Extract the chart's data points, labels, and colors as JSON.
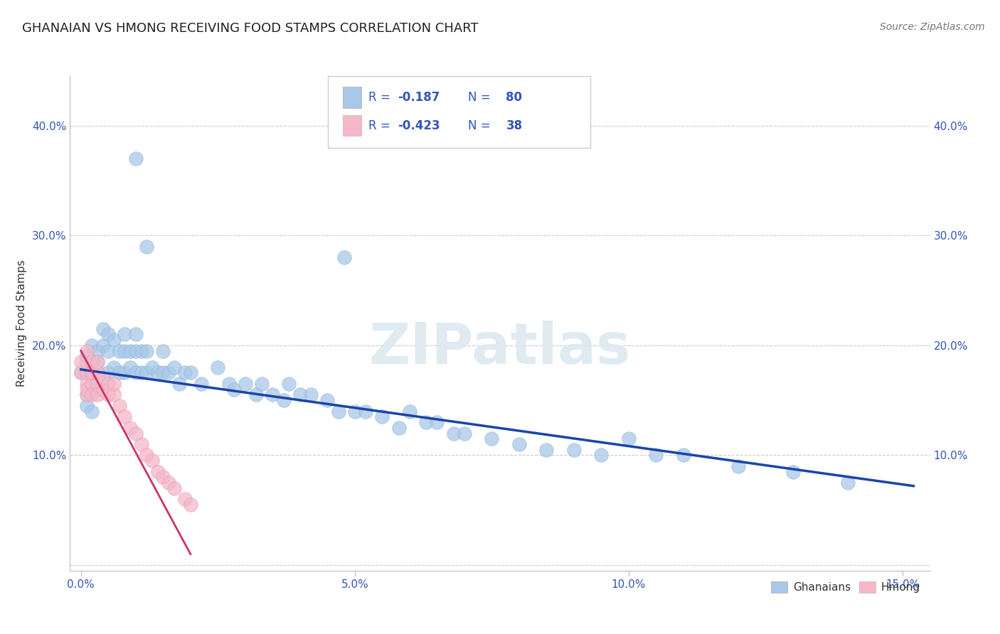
{
  "title": "GHANAIAN VS HMONG RECEIVING FOOD STAMPS CORRELATION CHART",
  "source": "Source: ZipAtlas.com",
  "ylabel": "Receiving Food Stamps",
  "xlim": [
    -0.002,
    0.155
  ],
  "ylim": [
    -0.005,
    0.445
  ],
  "xticks": [
    0.0,
    0.05,
    0.1,
    0.15
  ],
  "xtick_labels": [
    "0.0%",
    "5.0%",
    "10.0%",
    "15.0%"
  ],
  "yticks": [
    0.1,
    0.2,
    0.3,
    0.4
  ],
  "ytick_labels": [
    "10.0%",
    "20.0%",
    "30.0%",
    "40.0%"
  ],
  "blue_color": "#a8c8e8",
  "pink_color": "#f4b8c8",
  "blue_line_color": "#1a44aa",
  "pink_line_color": "#cc3366",
  "legend_text_color": "#3355bb",
  "blue_r": "-0.187",
  "blue_n": "80",
  "pink_r": "-0.423",
  "pink_n": "38",
  "legend_label_blue": "Ghanaians",
  "legend_label_pink": "Hmong",
  "watermark": "ZIPatlas",
  "blue_x": [
    0.0,
    0.001,
    0.001,
    0.001,
    0.001,
    0.002,
    0.002,
    0.002,
    0.002,
    0.003,
    0.003,
    0.003,
    0.003,
    0.004,
    0.004,
    0.005,
    0.005,
    0.005,
    0.006,
    0.006,
    0.007,
    0.007,
    0.008,
    0.008,
    0.008,
    0.009,
    0.009,
    0.01,
    0.01,
    0.01,
    0.011,
    0.011,
    0.012,
    0.012,
    0.013,
    0.014,
    0.015,
    0.015,
    0.016,
    0.017,
    0.018,
    0.019,
    0.02,
    0.022,
    0.025,
    0.027,
    0.028,
    0.03,
    0.032,
    0.033,
    0.035,
    0.037,
    0.038,
    0.04,
    0.042,
    0.045,
    0.047,
    0.05,
    0.052,
    0.055,
    0.058,
    0.06,
    0.063,
    0.065,
    0.068,
    0.07,
    0.075,
    0.08,
    0.085,
    0.09,
    0.095,
    0.1,
    0.105,
    0.11,
    0.12,
    0.13,
    0.14,
    0.01,
    0.012,
    0.048
  ],
  "blue_y": [
    0.175,
    0.155,
    0.145,
    0.175,
    0.19,
    0.16,
    0.14,
    0.165,
    0.2,
    0.185,
    0.16,
    0.195,
    0.175,
    0.2,
    0.215,
    0.175,
    0.195,
    0.21,
    0.18,
    0.205,
    0.175,
    0.195,
    0.175,
    0.195,
    0.21,
    0.18,
    0.195,
    0.175,
    0.195,
    0.21,
    0.175,
    0.195,
    0.175,
    0.195,
    0.18,
    0.175,
    0.175,
    0.195,
    0.175,
    0.18,
    0.165,
    0.175,
    0.175,
    0.165,
    0.18,
    0.165,
    0.16,
    0.165,
    0.155,
    0.165,
    0.155,
    0.15,
    0.165,
    0.155,
    0.155,
    0.15,
    0.14,
    0.14,
    0.14,
    0.135,
    0.125,
    0.14,
    0.13,
    0.13,
    0.12,
    0.12,
    0.115,
    0.11,
    0.105,
    0.105,
    0.1,
    0.115,
    0.1,
    0.1,
    0.09,
    0.085,
    0.075,
    0.37,
    0.29,
    0.28
  ],
  "pink_x": [
    0.0,
    0.0,
    0.001,
    0.001,
    0.001,
    0.001,
    0.001,
    0.001,
    0.001,
    0.002,
    0.002,
    0.002,
    0.002,
    0.002,
    0.002,
    0.003,
    0.003,
    0.003,
    0.003,
    0.004,
    0.004,
    0.005,
    0.005,
    0.006,
    0.006,
    0.007,
    0.008,
    0.009,
    0.01,
    0.011,
    0.012,
    0.013,
    0.014,
    0.015,
    0.016,
    0.017,
    0.019,
    0.02
  ],
  "pink_y": [
    0.185,
    0.175,
    0.175,
    0.165,
    0.155,
    0.175,
    0.185,
    0.195,
    0.16,
    0.175,
    0.165,
    0.155,
    0.175,
    0.185,
    0.175,
    0.165,
    0.155,
    0.175,
    0.185,
    0.16,
    0.17,
    0.155,
    0.165,
    0.155,
    0.165,
    0.145,
    0.135,
    0.125,
    0.12,
    0.11,
    0.1,
    0.095,
    0.085,
    0.08,
    0.075,
    0.07,
    0.06,
    0.055
  ],
  "blue_trendline_x": [
    0.0,
    0.152
  ],
  "blue_trendline_y": [
    0.178,
    0.072
  ],
  "pink_trendline_x": [
    0.0,
    0.02
  ],
  "pink_trendline_y": [
    0.195,
    0.01
  ],
  "background_color": "#ffffff",
  "grid_color": "#cccccc",
  "title_fontsize": 13,
  "axis_fontsize": 11,
  "tick_fontsize": 11
}
